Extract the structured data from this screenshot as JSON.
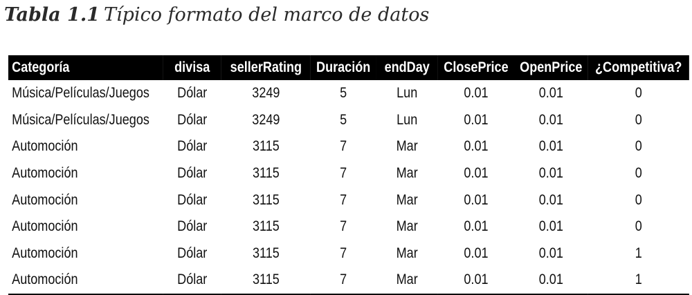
{
  "caption": {
    "label": "Tabla 1.1",
    "text": "Típico formato del marco de datos"
  },
  "table": {
    "headers": [
      "Categoría",
      "divisa",
      "sellerRating",
      "Duración",
      "endDay",
      "ClosePrice",
      "OpenPrice",
      "¿Competitiva?"
    ],
    "rows": [
      [
        "Música/Películas/Juegos",
        "Dólar",
        "3249",
        "5",
        "Lun",
        "0.01",
        "0.01",
        "0"
      ],
      [
        "Música/Películas/Juegos",
        "Dólar",
        "3249",
        "5",
        "Lun",
        "0.01",
        "0.01",
        "0"
      ],
      [
        "Automoción",
        "Dólar",
        "3115",
        "7",
        "Mar",
        "0.01",
        "0.01",
        "0"
      ],
      [
        "Automoción",
        "Dólar",
        "3115",
        "7",
        "Mar",
        "0.01",
        "0.01",
        "0"
      ],
      [
        "Automoción",
        "Dólar",
        "3115",
        "7",
        "Mar",
        "0.01",
        "0.01",
        "0"
      ],
      [
        "Automoción",
        "Dólar",
        "3115",
        "7",
        "Mar",
        "0.01",
        "0.01",
        "0"
      ],
      [
        "Automoción",
        "Dólar",
        "3115",
        "7",
        "Mar",
        "0.01",
        "0.01",
        "1"
      ],
      [
        "Automoción",
        "Dólar",
        "3115",
        "7",
        "Mar",
        "0.01",
        "0.01",
        "1"
      ]
    ]
  }
}
